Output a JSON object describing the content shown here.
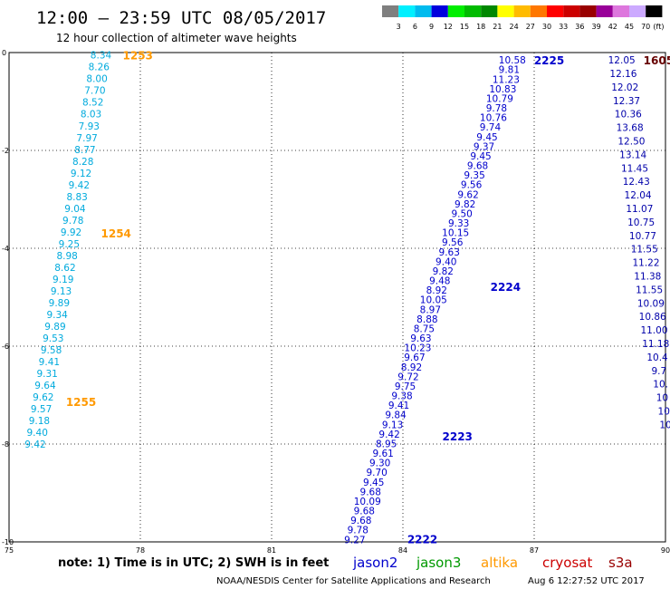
{
  "title": "12:00 – 23:59 UTC 08/05/2017",
  "subtitle": "12 hour collection of altimeter wave heights",
  "scale": {
    "colors": [
      "#7f7f7f",
      "#00f0ff",
      "#00bbee",
      "#0000dd",
      "#00ee00",
      "#00bb00",
      "#008800",
      "#ffff00",
      "#ffbb00",
      "#ff7700",
      "#ff0000",
      "#cc0000",
      "#990000",
      "#990099",
      "#dd77dd",
      "#ccaaff",
      "#000000"
    ],
    "labels": [
      "3",
      "6",
      "9",
      "12",
      "15",
      "18",
      "21",
      "24",
      "27",
      "30",
      "33",
      "36",
      "39",
      "42",
      "45",
      "70"
    ],
    "unit": "(ft)"
  },
  "chart_data": {
    "type": "scatter",
    "x_ticks": [
      "75",
      "78",
      "81",
      "84",
      "87",
      "90"
    ],
    "y_ticks": [
      "0",
      "-2",
      "-4",
      "-6",
      "-8",
      "-10"
    ],
    "xlim": [
      75,
      90
    ],
    "ylim": [
      -10,
      0
    ],
    "grid": true,
    "passes": [
      {
        "series": "altika",
        "color": "#00aadd",
        "time": "1253",
        "time_color": "#ff9900",
        "start": [
          77.1,
          -0.05
        ],
        "end": [
          75.6,
          -8.0
        ],
        "values": [
          "8.34",
          "8.26",
          "8.00",
          "7.70",
          "8.52",
          "8.03",
          "7.93",
          "7.97",
          "8.77",
          "8.28",
          "9.12",
          "9.42",
          "8.83",
          "9.04",
          "9.78",
          "9.92",
          "9.25",
          "8.98",
          "8.62",
          "9.19",
          "9.13",
          "9.89",
          "9.34",
          "9.89",
          "9.53",
          "9.58",
          "9.41",
          "9.31",
          "9.64",
          "9.62",
          "9.57",
          "9.18",
          "9.40",
          "9.42"
        ],
        "labels": [
          {
            "text": "1254",
            "x": 77.1,
            "y": -3.7
          },
          {
            "text": "1255",
            "x": 76.3,
            "y": -7.15
          }
        ]
      },
      {
        "series": "jason2",
        "color": "#0000cc",
        "time": "2225",
        "time_color": "#0000cc",
        "start": [
          86.5,
          -0.15
        ],
        "end": [
          82.9,
          -9.95
        ],
        "values": [
          "10.58",
          "9.81",
          "11.23",
          "10.83",
          "10.79",
          "9.78",
          "10.76",
          "9.74",
          "9.45",
          "9.37",
          "9.45",
          "9.68",
          "9.35",
          "9.56",
          "9.62",
          "9.82",
          "9.50",
          "9.33",
          "10.15",
          "9.56",
          "9.63",
          "9.40",
          "9.82",
          "9.48",
          "8.92",
          "10.05",
          "8.97",
          "8.88",
          "8.75",
          "9.63",
          "10.23",
          "9.67",
          "8.92",
          "9.72",
          "9.75",
          "9.38",
          "9.41",
          "9.84",
          "9.13",
          "9.42",
          "8.95",
          "9.61",
          "9.30",
          "9.70",
          "9.45",
          "9.68",
          "10.09",
          "9.68",
          "9.68",
          "9.78",
          "9.27"
        ],
        "labels": [
          {
            "text": "2224",
            "x": 86.0,
            "y": -4.8
          },
          {
            "text": "2223",
            "x": 84.9,
            "y": -7.85
          },
          {
            "text": "2222",
            "x": 84.1,
            "y": -9.95
          }
        ]
      },
      {
        "series": "cryosat",
        "color": "#0000aa",
        "time": "1605",
        "time_color": "#660000",
        "start": [
          89.0,
          -0.15
        ],
        "end": [
          90.0,
          -7.6
        ],
        "values": [
          "12.05",
          "12.16",
          "12.02",
          "12.37",
          "10.36",
          "13.68",
          "12.50",
          "13.14",
          "11.45",
          "12.43",
          "12.04",
          "11.07",
          "10.75",
          "10.77",
          "11.55",
          "11.22",
          "11.38",
          "11.55",
          "10.09",
          "10.86",
          "11.00",
          "11.18",
          "10.4",
          "9.7",
          "10.",
          "10",
          "10",
          "10"
        ],
        "labels": []
      }
    ]
  },
  "legend": [
    {
      "name": "jason2",
      "color": "#0000cc"
    },
    {
      "name": "jason3",
      "color": "#009900"
    },
    {
      "name": "altika",
      "color": "#ff9900"
    },
    {
      "name": "cryosat",
      "color": "#cc0000"
    },
    {
      "name": "s3a",
      "color": "#990000"
    }
  ],
  "note": "note:  1) Time is in UTC;  2) SWH is in feet",
  "footer": {
    "center": "NOAA/NESDIS Center for Satellite Applications and Research",
    "date": "Aug  6 12:27:52 UTC 2017"
  }
}
